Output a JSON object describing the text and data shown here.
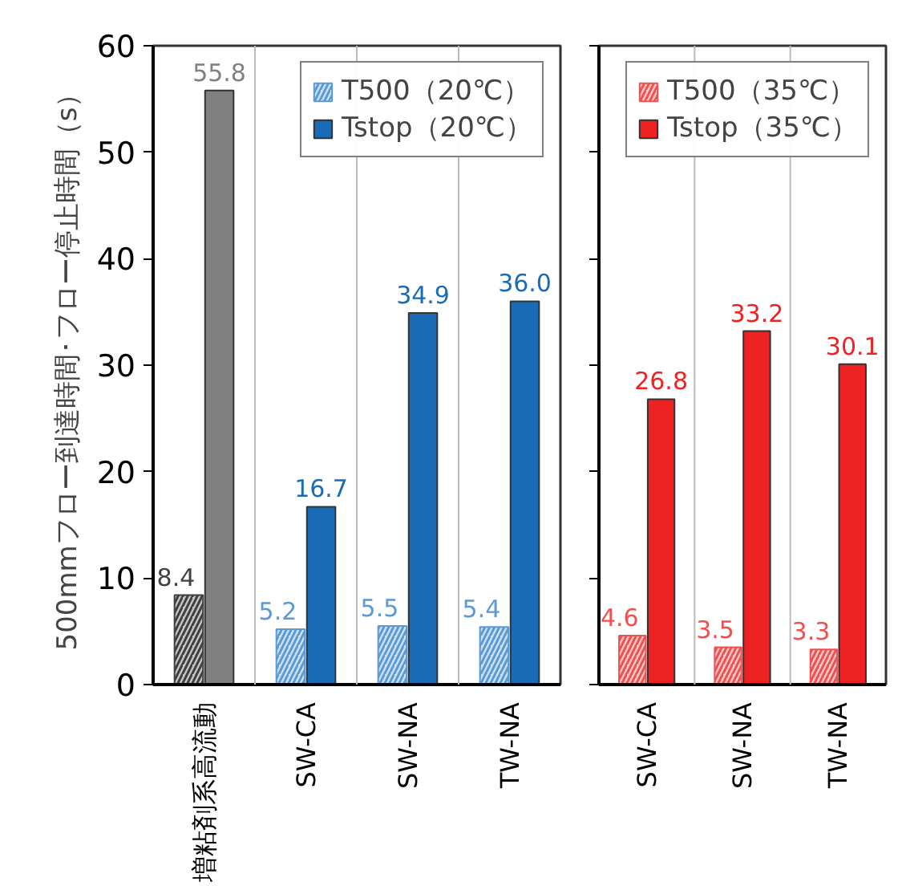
{
  "chart_data": [
    {
      "type": "bar",
      "ylabel": "500mmフロー到達時間･フロー停止時間（s）",
      "categories": [
        "増粘剤系高流動",
        "SW-CA",
        "SW-NA",
        "TW-NA"
      ],
      "series": [
        {
          "name": "T500（20℃）",
          "colors": [
            "#404040",
            "#5b9bd5",
            "#5b9bd5",
            "#5b9bd5"
          ],
          "values": [
            8.4,
            5.2,
            5.5,
            5.4
          ]
        },
        {
          "name": "Tstop（20℃）",
          "colors": [
            "#808080",
            "#1a6bb5",
            "#1a6bb5",
            "#1a6bb5"
          ],
          "values": [
            55.8,
            16.7,
            34.9,
            36.0
          ],
          "value_labels": [
            "55.8",
            "16.7",
            "34.9",
            "36.0"
          ]
        }
      ],
      "ylim": [
        0,
        60
      ],
      "yticks": [
        0,
        10,
        20,
        30,
        40,
        50,
        60
      ],
      "grid": "x",
      "legend": "top right",
      "data_labels": true
    },
    {
      "type": "bar",
      "categories": [
        "SW-CA",
        "SW-NA",
        "TW-NA"
      ],
      "series": [
        {
          "name": "T500（35℃）",
          "color": "#f05050",
          "values": [
            4.6,
            3.5,
            3.3
          ]
        },
        {
          "name": "Tstop（35℃）",
          "color": "#ee2222",
          "values": [
            26.8,
            33.2,
            30.1
          ]
        }
      ],
      "ylim": [
        0,
        60
      ],
      "yticks": [
        0,
        10,
        20,
        30,
        40,
        50,
        60
      ],
      "grid": "x",
      "legend": "top right",
      "data_labels": true,
      "tick_labels": "x"
    }
  ]
}
